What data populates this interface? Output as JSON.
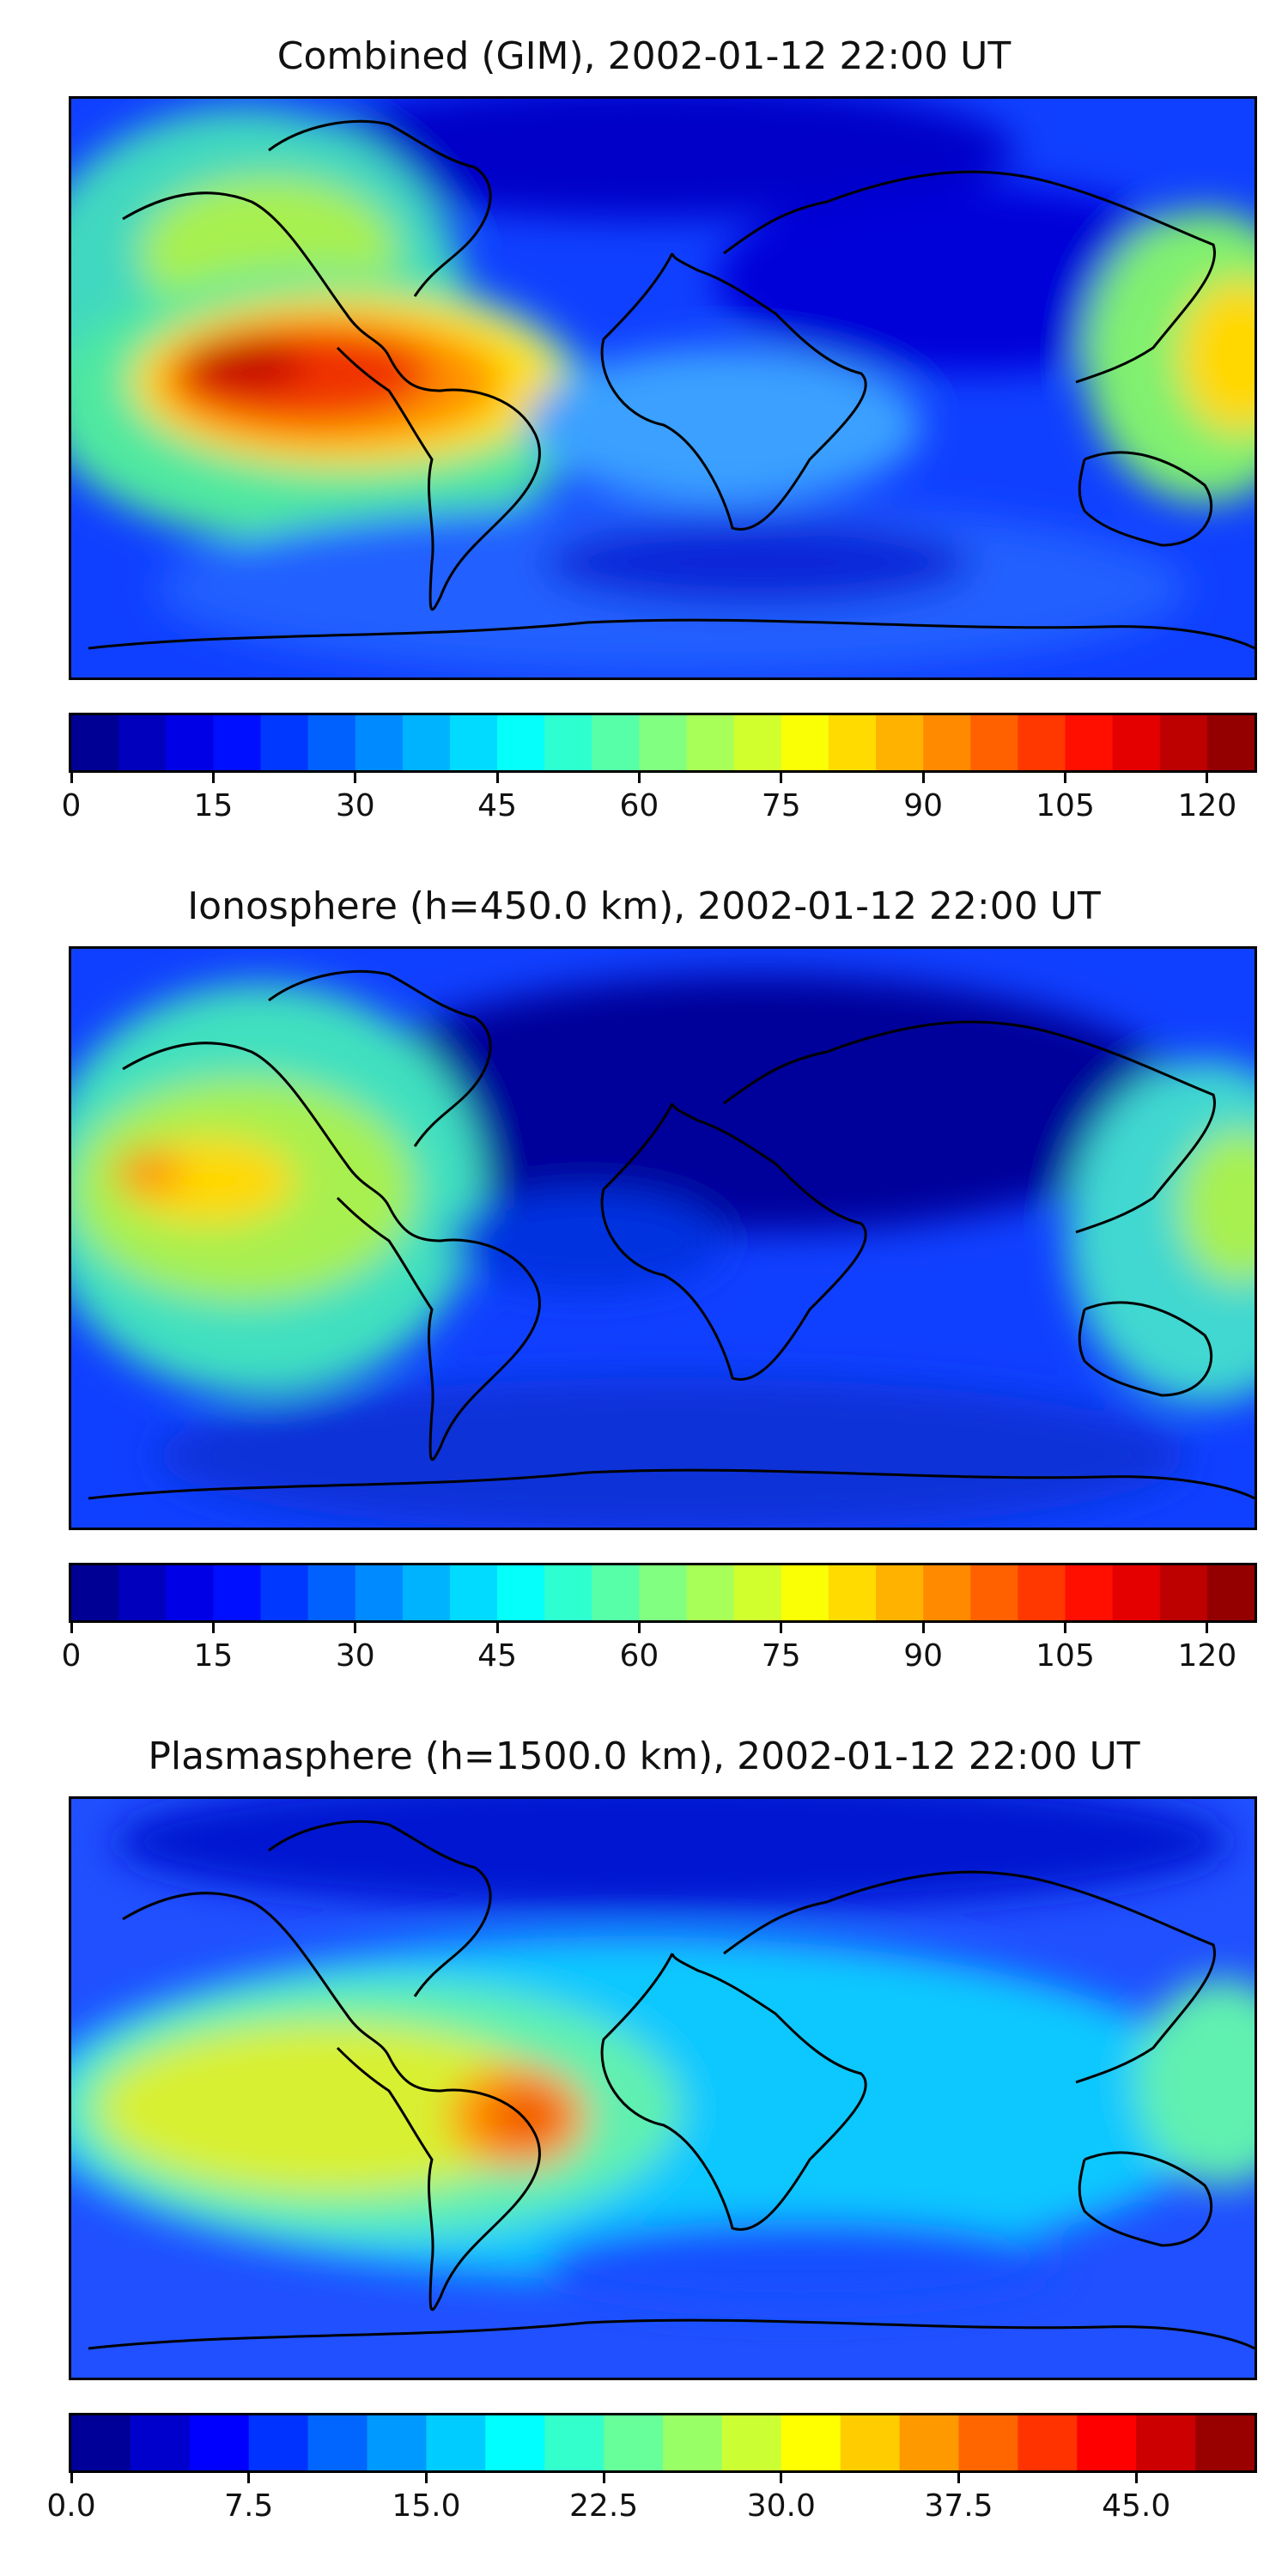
{
  "figure": {
    "panels": [
      {
        "title": "Combined (GIM), 2002-01-12 22:00 UT",
        "colorbar": {
          "min": 0,
          "max": 125,
          "levels": 25,
          "tick_values": [
            0,
            15,
            30,
            45,
            60,
            75,
            90,
            105,
            120
          ],
          "tick_labels": [
            "0",
            "15",
            "30",
            "45",
            "60",
            "75",
            "90",
            "105",
            "120"
          ]
        }
      },
      {
        "title": "Ionosphere  (h=450.0 km), 2002-01-12 22:00 UT",
        "colorbar": {
          "min": 0,
          "max": 125,
          "levels": 25,
          "tick_values": [
            0,
            15,
            30,
            45,
            60,
            75,
            90,
            105,
            120
          ],
          "tick_labels": [
            "0",
            "15",
            "30",
            "45",
            "60",
            "75",
            "90",
            "105",
            "120"
          ]
        }
      },
      {
        "title": "Plasmasphere (h=1500.0 km), 2002-01-12 22:00 UT",
        "colorbar": {
          "min": 0,
          "max": 50,
          "levels": 20,
          "tick_values": [
            0,
            7.5,
            15,
            22.5,
            30,
            37.5,
            45
          ],
          "tick_labels": [
            "0.0",
            "7.5",
            "15.0",
            "22.5",
            "30.0",
            "37.5",
            "45.0"
          ]
        }
      }
    ],
    "colormap": "jet",
    "coastline_color": "#000000"
  }
}
